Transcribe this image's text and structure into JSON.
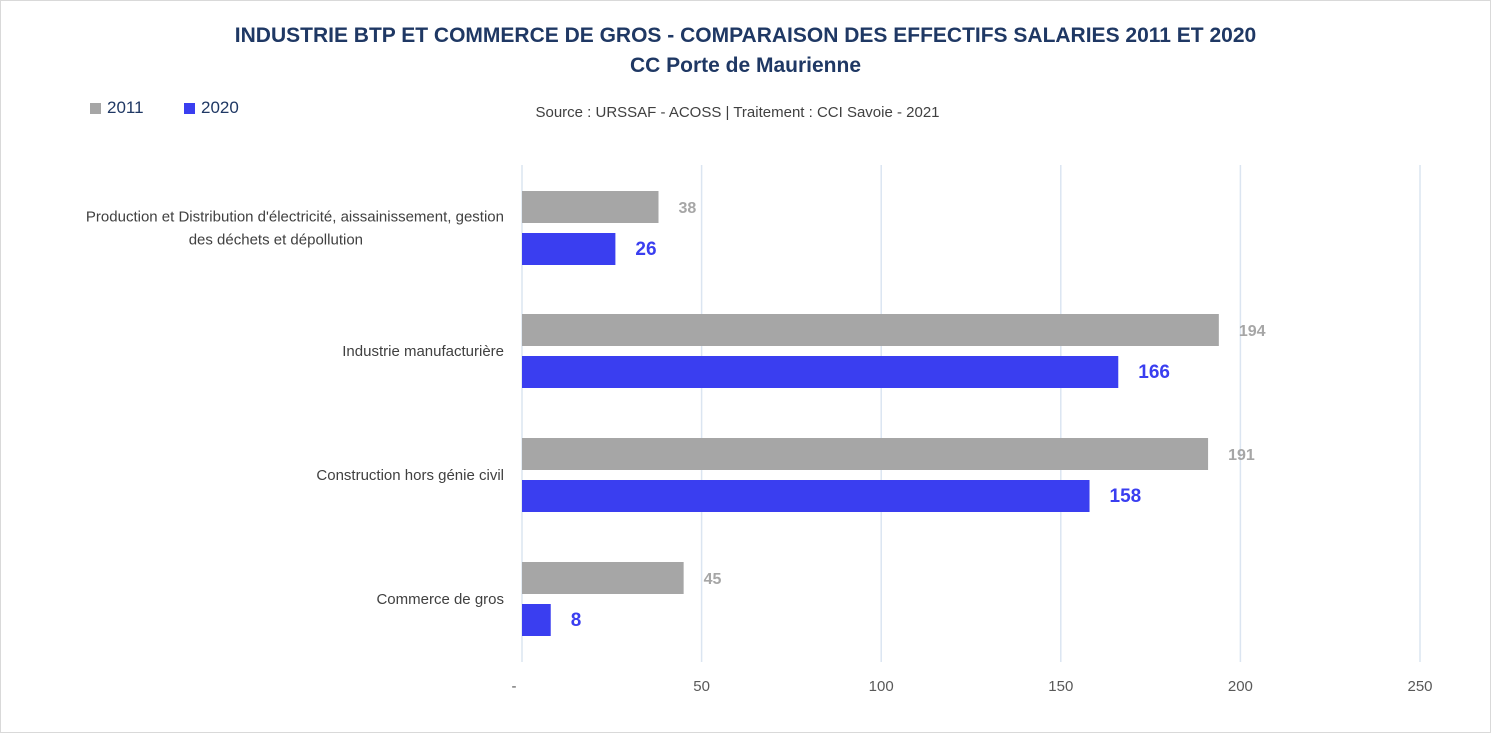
{
  "chart_data": {
    "type": "bar",
    "orientation": "horizontal",
    "title": "INDUSTRIE BTP ET COMMERCE DE GROS - COMPARAISON DES EFFECTIFS SALARIES 2011 ET 2020",
    "subtitle": "CC Porte de Maurienne",
    "source": "Source : URSSAF - ACOSS  |  Traitement : CCI Savoie - 2021",
    "categories": [
      [
        "Production et Distribution d'électricité, aissainissement, gestion",
        "des déchets et dépollution"
      ],
      [
        "Industrie manufacturière"
      ],
      [
        "Construction hors génie civil"
      ],
      [
        "Commerce de gros"
      ]
    ],
    "series": [
      {
        "name": "2011",
        "color": "#a6a6a6",
        "values": [
          38,
          194,
          191,
          45
        ]
      },
      {
        "name": "2020",
        "color": "#3a3ef0",
        "values": [
          26,
          166,
          158,
          8
        ]
      }
    ],
    "xlim": [
      0,
      250
    ],
    "ticks": [
      {
        "value": 0,
        "label": "-"
      },
      {
        "value": 50,
        "label": "50"
      },
      {
        "value": 100,
        "label": "100"
      },
      {
        "value": 150,
        "label": "150"
      },
      {
        "value": 200,
        "label": "200"
      },
      {
        "value": 250,
        "label": "250"
      }
    ],
    "grid": true,
    "legend": "top-left",
    "xlabel": "",
    "ylabel": ""
  },
  "colors": {
    "title": "#1f3864",
    "grid": "#dbe5f1",
    "axis": "#bfbfbf"
  }
}
